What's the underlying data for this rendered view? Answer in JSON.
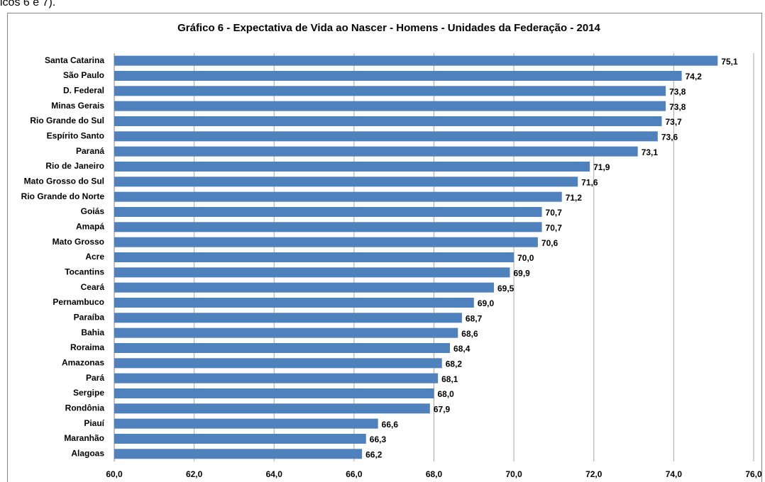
{
  "context_text": "icos 6 e 7).",
  "chart_data": {
    "type": "bar",
    "orientation": "horizontal",
    "title": "Gráfico 6 - Expectativa de Vida ao Nascer - Homens -  Unidades da Federação  - 2014",
    "categories": [
      "Santa Catarina",
      "São Paulo",
      "D. Federal",
      "Minas Gerais",
      "Rio Grande do Sul",
      "Espírito Santo",
      "Paraná",
      "Rio de Janeiro",
      "Mato Grosso do Sul",
      "Rio Grande do Norte",
      "Goiás",
      "Amapá",
      "Mato Grosso",
      "Acre",
      "Tocantins",
      "Ceará",
      "Pernambuco",
      "Paraíba",
      "Bahia",
      "Roraima",
      "Amazonas",
      "Pará",
      "Sergipe",
      "Rondônia",
      "Piauí",
      "Maranhão",
      "Alagoas"
    ],
    "values": [
      75.1,
      74.2,
      73.8,
      73.8,
      73.7,
      73.6,
      73.1,
      71.9,
      71.6,
      71.2,
      70.7,
      70.7,
      70.6,
      70.0,
      69.9,
      69.5,
      69.0,
      68.7,
      68.6,
      68.4,
      68.2,
      68.1,
      68.0,
      67.9,
      66.6,
      66.3,
      66.2
    ],
    "value_labels": [
      "75,1",
      "74,2",
      "73,8",
      "73,8",
      "73,7",
      "73,6",
      "73,1",
      "71,9",
      "71,6",
      "71,2",
      "70,7",
      "70,7",
      "70,6",
      "70,0",
      "69,9",
      "69,5",
      "69,0",
      "68,7",
      "68,6",
      "68,4",
      "68,2",
      "68,1",
      "68,0",
      "67,9",
      "66,6",
      "66,3",
      "66,2"
    ],
    "color": "#4f81bd",
    "xlim": [
      60,
      76
    ],
    "xticks": [
      {
        "value": 60,
        "label": "60,0"
      },
      {
        "value": 62,
        "label": "62,0"
      },
      {
        "value": 64,
        "label": "64,0"
      },
      {
        "value": 66,
        "label": "66,0"
      },
      {
        "value": 68,
        "label": "68,0"
      },
      {
        "value": 70,
        "label": "70,0"
      },
      {
        "value": 72,
        "label": "72,0"
      },
      {
        "value": 74,
        "label": "74,0"
      },
      {
        "value": 76,
        "label": "76,0"
      }
    ],
    "grid": true
  }
}
